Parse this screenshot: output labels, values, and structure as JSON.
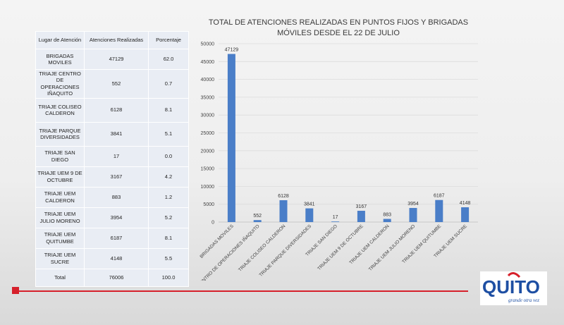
{
  "table": {
    "headers": [
      "Lugar de Atención",
      "Atenciones Realizadas",
      "Porcentaje"
    ],
    "rows": [
      {
        "place": "BRIGADAS MOVILES",
        "count": "47129",
        "pct": "62.0"
      },
      {
        "place": "TRIAJE CENTRO DE OPERACIONES IÑAQUITO",
        "count": "552",
        "pct": "0.7"
      },
      {
        "place": "TRIAJE COLISEO CALDERON",
        "count": "6128",
        "pct": "8.1"
      },
      {
        "place": "TRIAJE PARQUE DIVERSIDADES",
        "count": "3841",
        "pct": "5.1"
      },
      {
        "place": "TRIAJE SAN DIEGO",
        "count": "17",
        "pct": "0.0"
      },
      {
        "place": "TRIAJE UEM 9 DE OCTUBRE",
        "count": "3167",
        "pct": "4.2"
      },
      {
        "place": "TRIAJE UEM CALDERON",
        "count": "883",
        "pct": "1.2"
      },
      {
        "place": "TRIAJE UEM JULIO MORENO",
        "count": "3954",
        "pct": "5.2"
      },
      {
        "place": "TRIAJE UEM QUITUMBE",
        "count": "6187",
        "pct": "8.1"
      },
      {
        "place": "TRIAJE UEM SUCRE",
        "count": "4148",
        "pct": "5.5"
      }
    ],
    "total": {
      "label": "Total",
      "count": "76006",
      "pct": "100.0"
    }
  },
  "chart_data": {
    "type": "bar",
    "title_lines": [
      "TOTAL DE ATENCIONES REALIZADAS EN PUNTOS FIJOS Y BRIGADAS",
      "MÓVILES DESDE EL 22 DE JULIO"
    ],
    "categories": [
      "BRIGADAS MOVILES",
      "TRIAJE CENTRO DE OPERACIONES IÑAQUITO",
      "TRIAJE COLISEO CALDERON",
      "TRIAJE PARQUE DIVERSIDADES",
      "TRIAJE SAN DIEGO",
      "TRIAJE UEM 9 DE OCTUBRE",
      "TRIAJE UEM CALDERON",
      "TRIAJE UEM JULIO MORENO",
      "TRIAJE UEM QUITUMBE",
      "TRIAJE UEM SUCRE"
    ],
    "values": [
      47129,
      552,
      6128,
      3841,
      17,
      3167,
      883,
      3954,
      6187,
      4148
    ],
    "ylim": [
      0,
      50000
    ],
    "yticks": [
      0,
      5000,
      10000,
      15000,
      20000,
      25000,
      30000,
      35000,
      40000,
      45000,
      50000
    ],
    "grid": true,
    "bar_color": "#4a7ec8"
  },
  "logo": {
    "text": "QUITO",
    "tagline": "grande otra vez",
    "colors": {
      "red": "#d6202b",
      "blue": "#1e4fa3"
    }
  },
  "accent_color": "#d6202b"
}
